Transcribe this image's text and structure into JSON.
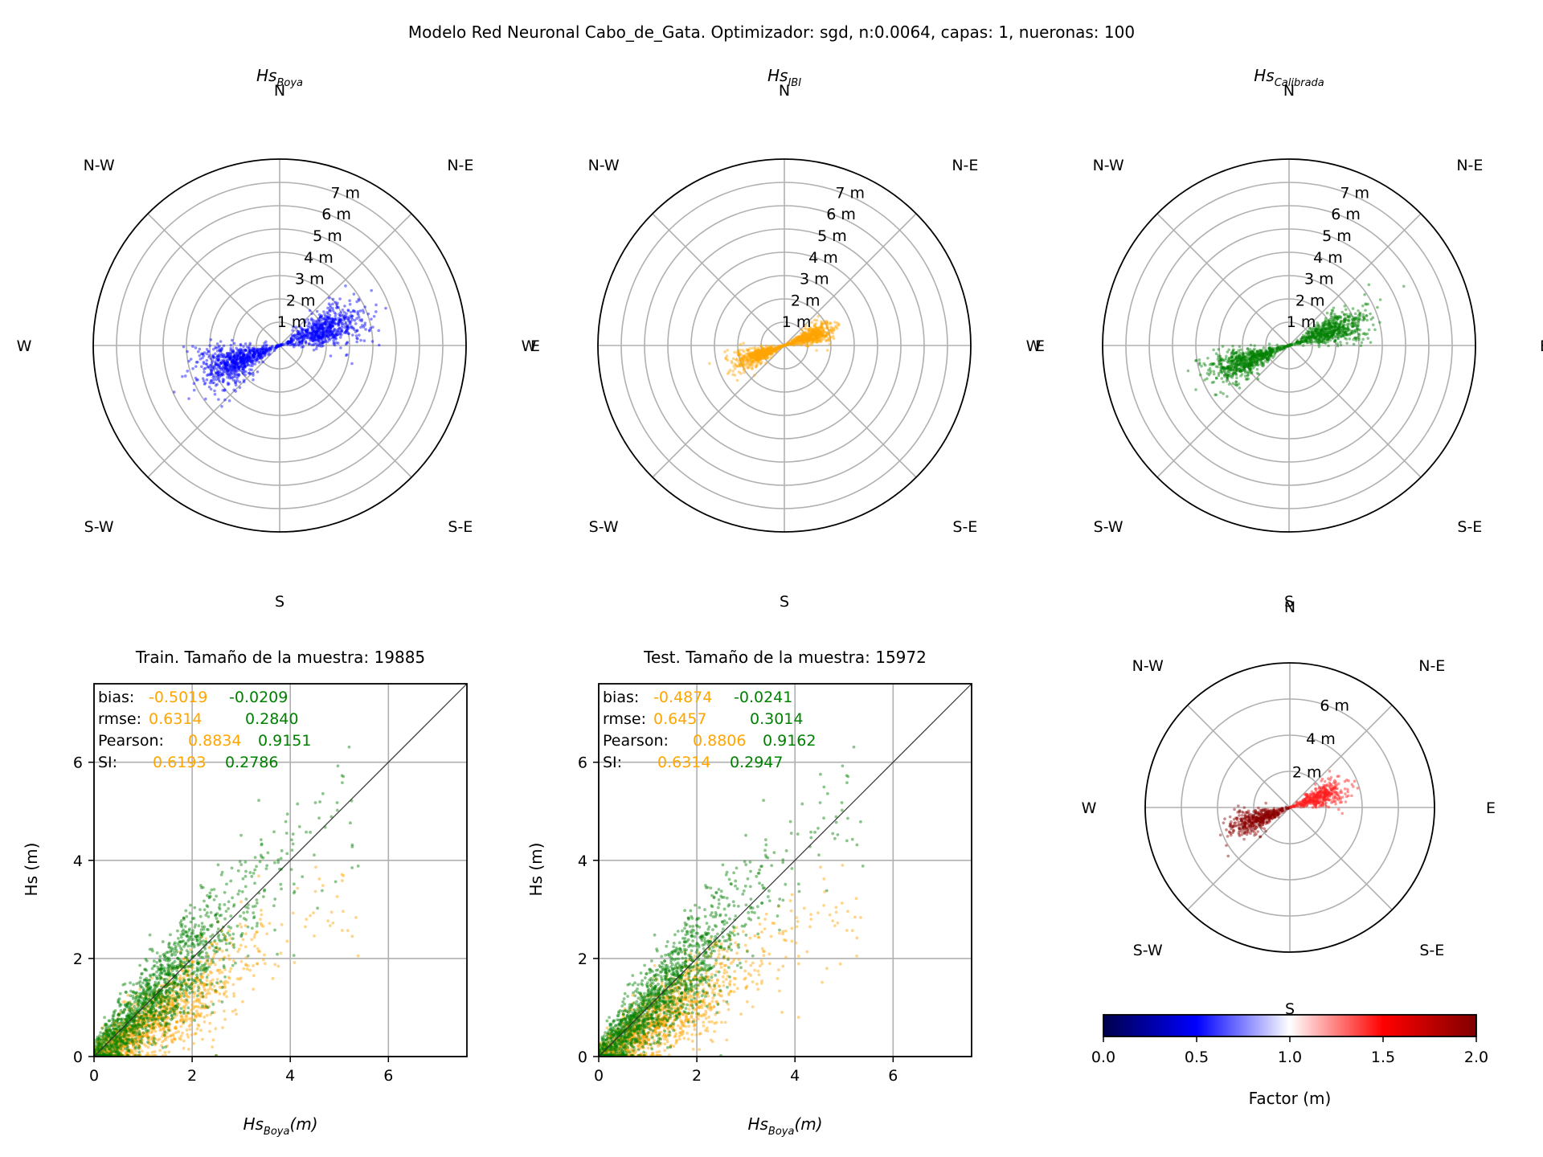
{
  "suptitle": "Modelo Red Neuronal Cabo_de_Gata. Optimizador: sgd, n:0.0064, capas: 1, nueronas: 100",
  "colors": {
    "buoy": "#0000ff",
    "ibi": "#ffa500",
    "calibrated": "#008000",
    "diagonal": "#333333",
    "colormap": [
      "#00004c",
      "#0000ff",
      "#ffffff",
      "#ff0000",
      "#800000"
    ]
  },
  "compass": [
    "N",
    "N-E",
    "E",
    "S-E",
    "S",
    "S-W",
    "W",
    "N-W"
  ],
  "chart_data": [
    {
      "type": "scatter",
      "subtype": "polar",
      "title_main": "Hs",
      "title_sub": "Boya",
      "radial_ticks": [
        "1 m",
        "2 m",
        "3 m",
        "4 m",
        "5 m",
        "6 m",
        "7 m"
      ],
      "rmax": 8,
      "color": "#0000ff",
      "cloud": {
        "direction_deg": 70,
        "mean_hs": 2.0,
        "spread_deg": 10,
        "hs_spread": 0.9,
        "count": 1400
      }
    },
    {
      "type": "scatter",
      "subtype": "polar",
      "title_main": "Hs",
      "title_sub": "IBI",
      "radial_ticks": [
        "1 m",
        "2 m",
        "3 m",
        "4 m",
        "5 m",
        "6 m",
        "7 m"
      ],
      "rmax": 8,
      "color": "#ffa500",
      "cloud": {
        "direction_deg": 70,
        "mean_hs": 1.2,
        "spread_deg": 8,
        "hs_spread": 0.55,
        "count": 1000
      }
    },
    {
      "type": "scatter",
      "subtype": "polar",
      "title_main": "Hs",
      "title_sub": "Calibrada",
      "radial_ticks": [
        "1 m",
        "2 m",
        "3 m",
        "4 m",
        "5 m",
        "6 m",
        "7 m"
      ],
      "rmax": 8,
      "color": "#008000",
      "cloud": {
        "direction_deg": 70,
        "mean_hs": 1.9,
        "spread_deg": 8,
        "hs_spread": 0.85,
        "count": 1300
      }
    },
    {
      "type": "scatter",
      "title": "Train. Tamaño de la muestra: 19885",
      "xlabel_main": "Hs",
      "xlabel_sub": "Boya",
      "xlabel_unit": "(m)",
      "ylabel": "Hs (m)",
      "xlim": [
        0,
        7.6
      ],
      "ylim": [
        0,
        7.6
      ],
      "xticks": [
        0,
        2,
        4,
        6
      ],
      "yticks": [
        0,
        2,
        4,
        6
      ],
      "stats": {
        "labels": [
          "bias:",
          "rmse:",
          "Pearson:",
          "SI:"
        ],
        "ibi": [
          "-0.5019",
          "0.6314",
          "0.8834",
          "0.6193"
        ],
        "calibrated": [
          "-0.0209",
          "0.2840",
          "0.9151",
          "0.2786"
        ]
      },
      "series": [
        {
          "color": "#ffa500",
          "slope": 0.62,
          "noise": 0.3,
          "count": 1300
        },
        {
          "color": "#008000",
          "slope": 1.0,
          "noise": 0.35,
          "count": 1500
        }
      ]
    },
    {
      "type": "scatter",
      "title": "Test. Tamaño de la muestra: 15972",
      "xlabel_main": "Hs",
      "xlabel_sub": "Boya",
      "xlabel_unit": "(m)",
      "ylabel": "Hs (m)",
      "xlim": [
        0,
        7.6
      ],
      "ylim": [
        0,
        7.6
      ],
      "xticks": [
        0,
        2,
        4,
        6
      ],
      "yticks": [
        0,
        2,
        4,
        6
      ],
      "stats": {
        "labels": [
          "bias:",
          "rmse:",
          "Pearson:",
          "SI:"
        ],
        "ibi": [
          "-0.4874",
          "0.6457",
          "0.8806",
          "0.6314"
        ],
        "calibrated": [
          "-0.0241",
          "0.3014",
          "0.9162",
          "0.2947"
        ]
      },
      "series": [
        {
          "color": "#ffa500",
          "slope": 0.62,
          "noise": 0.3,
          "count": 1300
        },
        {
          "color": "#008000",
          "slope": 1.0,
          "noise": 0.35,
          "count": 1500
        }
      ]
    },
    {
      "type": "scatter",
      "subtype": "polar",
      "radial_ticks": [
        "2 m",
        "4 m",
        "6 m"
      ],
      "rmax": 8,
      "cloud": {
        "direction_deg": 70,
        "mean_hs": 1.8,
        "spread_deg": 8,
        "hs_spread": 0.8,
        "count": 900
      },
      "colorbar": {
        "label": "Factor (m)",
        "ticks": [
          "0.0",
          "0.5",
          "1.0",
          "1.5",
          "2.0"
        ],
        "range": [
          0,
          2
        ]
      }
    }
  ]
}
